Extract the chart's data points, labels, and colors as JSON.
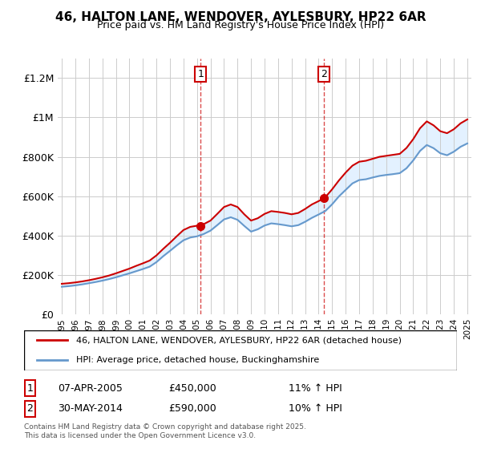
{
  "title": "46, HALTON LANE, WENDOVER, AYLESBURY, HP22 6AR",
  "subtitle": "Price paid vs. HM Land Registry's House Price Index (HPI)",
  "legend_line1": "46, HALTON LANE, WENDOVER, AYLESBURY, HP22 6AR (detached house)",
  "legend_line2": "HPI: Average price, detached house, Buckinghamshire",
  "footnote": "Contains HM Land Registry data © Crown copyright and database right 2025.\nThis data is licensed under the Open Government Licence v3.0.",
  "sale1_label": "1",
  "sale1_date": "07-APR-2005",
  "sale1_price": "£450,000",
  "sale1_hpi": "11% ↑ HPI",
  "sale2_label": "2",
  "sale2_date": "30-MAY-2014",
  "sale2_price": "£590,000",
  "sale2_hpi": "10% ↑ HPI",
  "red_color": "#cc0000",
  "blue_color": "#6699cc",
  "shaded_color": "#ddeeff",
  "dashed_color": "#cc0000",
  "background_color": "#ffffff",
  "grid_color": "#cccccc",
  "ylim": [
    0,
    1300000
  ],
  "yticks": [
    0,
    200000,
    400000,
    600000,
    800000,
    1000000,
    1200000
  ],
  "ytick_labels": [
    "£0",
    "£200K",
    "£400K",
    "£600K",
    "£800K",
    "£1M",
    "£1.2M"
  ],
  "sale1_x": 2005.27,
  "sale1_y": 450000,
  "sale2_x": 2014.41,
  "sale2_y": 590000,
  "vline1_x": 2005.27,
  "vline2_x": 2014.41,
  "red_data": {
    "years": [
      1995.0,
      1995.5,
      1996.0,
      1996.5,
      1997.0,
      1997.5,
      1998.0,
      1998.5,
      1999.0,
      1999.5,
      2000.0,
      2000.5,
      2001.0,
      2001.5,
      2002.0,
      2002.5,
      2003.0,
      2003.5,
      2004.0,
      2004.5,
      2005.0,
      2005.27,
      2005.5,
      2006.0,
      2006.5,
      2007.0,
      2007.5,
      2008.0,
      2008.5,
      2009.0,
      2009.5,
      2010.0,
      2010.5,
      2011.0,
      2011.5,
      2012.0,
      2012.5,
      2013.0,
      2013.5,
      2014.0,
      2014.41,
      2014.5,
      2015.0,
      2015.5,
      2016.0,
      2016.5,
      2017.0,
      2017.5,
      2018.0,
      2018.5,
      2019.0,
      2019.5,
      2020.0,
      2020.5,
      2021.0,
      2021.5,
      2022.0,
      2022.5,
      2023.0,
      2023.5,
      2024.0,
      2024.5,
      2025.0
    ],
    "values": [
      155000,
      158000,
      162000,
      167000,
      173000,
      180000,
      188000,
      197000,
      208000,
      220000,
      232000,
      246000,
      259000,
      273000,
      299000,
      332000,
      363000,
      396000,
      428000,
      444000,
      450000,
      450000,
      458000,
      476000,
      510000,
      545000,
      558000,
      545000,
      508000,
      476000,
      488000,
      510000,
      524000,
      520000,
      515000,
      508000,
      515000,
      535000,
      558000,
      575000,
      590000,
      595000,
      635000,
      680000,
      720000,
      755000,
      775000,
      780000,
      790000,
      800000,
      805000,
      810000,
      815000,
      845000,
      890000,
      945000,
      980000,
      960000,
      930000,
      920000,
      940000,
      970000,
      990000
    ]
  },
  "blue_data": {
    "years": [
      1995.0,
      1995.5,
      1996.0,
      1996.5,
      1997.0,
      1997.5,
      1998.0,
      1998.5,
      1999.0,
      1999.5,
      2000.0,
      2000.5,
      2001.0,
      2001.5,
      2002.0,
      2002.5,
      2003.0,
      2003.5,
      2004.0,
      2004.5,
      2005.0,
      2005.5,
      2006.0,
      2006.5,
      2007.0,
      2007.5,
      2008.0,
      2008.5,
      2009.0,
      2009.5,
      2010.0,
      2010.5,
      2011.0,
      2011.5,
      2012.0,
      2012.5,
      2013.0,
      2013.5,
      2014.0,
      2014.5,
      2015.0,
      2015.5,
      2016.0,
      2016.5,
      2017.0,
      2017.5,
      2018.0,
      2018.5,
      2019.0,
      2019.5,
      2020.0,
      2020.5,
      2021.0,
      2021.5,
      2022.0,
      2022.5,
      2023.0,
      2023.5,
      2024.0,
      2024.5,
      2025.0
    ],
    "values": [
      140000,
      143000,
      147000,
      152000,
      158000,
      164000,
      171000,
      179000,
      188000,
      198000,
      208000,
      219000,
      230000,
      242000,
      265000,
      295000,
      322000,
      350000,
      376000,
      390000,
      396000,
      408000,
      425000,
      453000,
      482000,
      493000,
      480000,
      449000,
      420000,
      432000,
      451000,
      462000,
      458000,
      453000,
      447000,
      453000,
      470000,
      490000,
      507000,
      525000,
      559000,
      599000,
      632000,
      665000,
      682000,
      686000,
      695000,
      703000,
      708000,
      712000,
      717000,
      742000,
      782000,
      830000,
      860000,
      844000,
      818000,
      808000,
      826000,
      851000,
      868000
    ]
  },
  "x_start": 1995,
  "x_end": 2025,
  "xtick_years": [
    1995,
    1996,
    1997,
    1998,
    1999,
    2000,
    2001,
    2002,
    2003,
    2004,
    2005,
    2006,
    2007,
    2008,
    2009,
    2010,
    2011,
    2012,
    2013,
    2014,
    2015,
    2016,
    2017,
    2018,
    2019,
    2020,
    2021,
    2022,
    2023,
    2024,
    2025
  ]
}
